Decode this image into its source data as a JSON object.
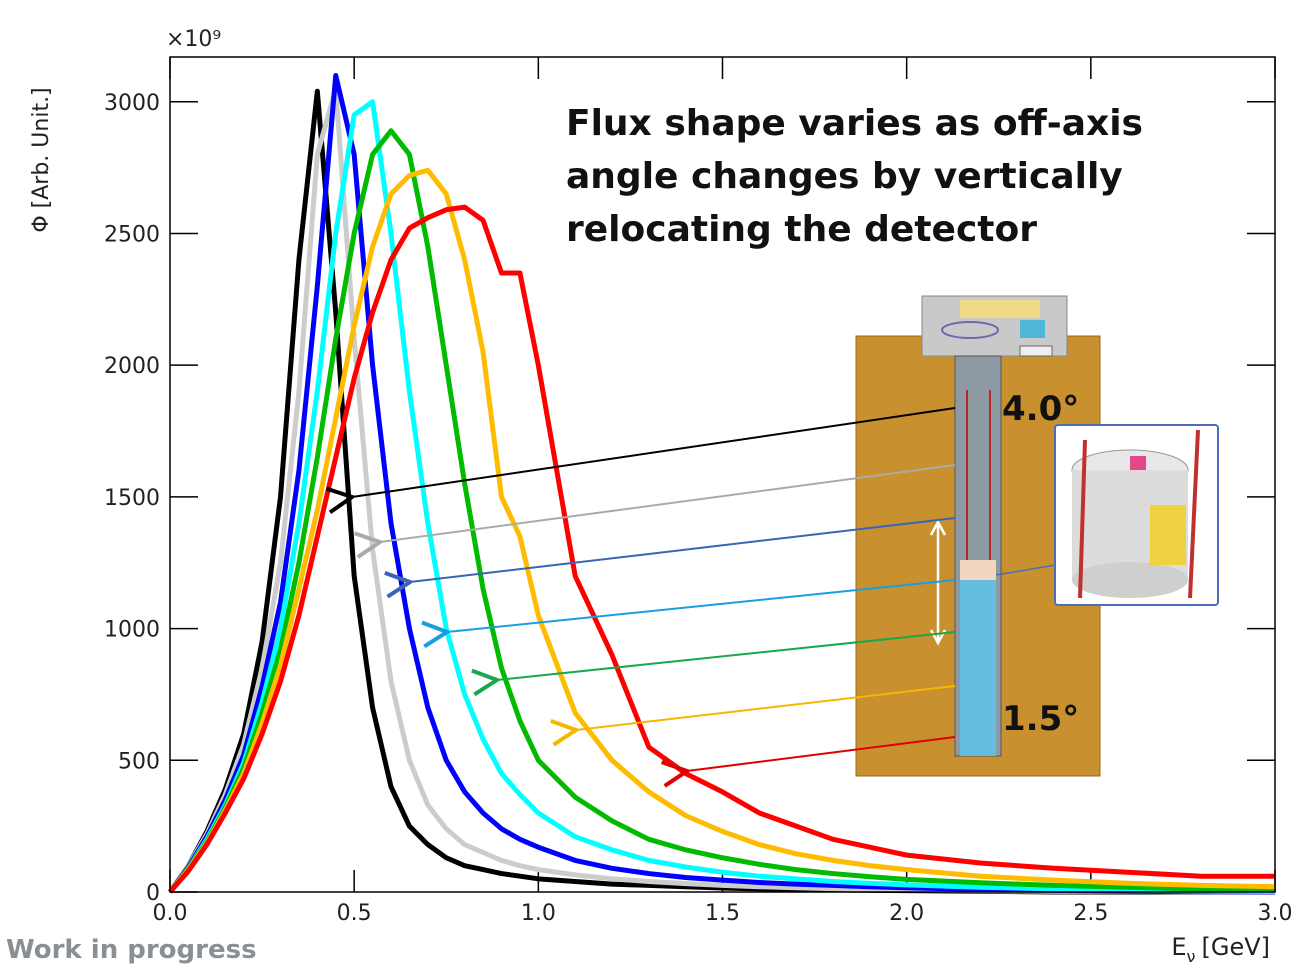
{
  "chart_data": {
    "type": "line",
    "multiplier": "×10⁹",
    "y_label": "Φ [Arb. Unit.]",
    "x_label": {
      "base": "E",
      "sub": "ν",
      "unit": "[GeV]"
    },
    "annotations": {
      "headline": [
        "Flux shape varies as off-axis",
        "angle changes by vertically",
        "relocating the detector"
      ],
      "angle_high": "4.0°",
      "angle_low": "1.5°",
      "status": "Work in progress"
    },
    "xlim": [
      0,
      3.0
    ],
    "ylim": [
      0,
      3170
    ],
    "xticks": [
      {
        "value": 0,
        "label": "0.0"
      },
      {
        "value": 0.5,
        "label": "0.5"
      },
      {
        "value": 1.0,
        "label": "1.0"
      },
      {
        "value": 1.5,
        "label": "1.5"
      },
      {
        "value": 2.0,
        "label": "2.0"
      },
      {
        "value": 2.5,
        "label": "2.5"
      },
      {
        "value": 3.0,
        "label": "3.0"
      }
    ],
    "yticks": [
      0,
      500,
      1000,
      1500,
      2000,
      2500,
      3000
    ],
    "x": [
      0,
      0.05,
      0.1,
      0.15,
      0.2,
      0.25,
      0.3,
      0.35,
      0.4,
      0.45,
      0.5,
      0.55,
      0.6,
      0.65,
      0.7,
      0.75,
      0.8,
      0.85,
      0.9,
      0.95,
      1.0,
      1.1,
      1.2,
      1.3,
      1.4,
      1.5,
      1.6,
      1.7,
      1.8,
      1.9,
      2.0,
      2.2,
      2.4,
      2.6,
      2.8,
      3.0
    ],
    "series": [
      {
        "color": "#000000",
        "values": [
          0,
          100,
          230,
          390,
          600,
          950,
          1500,
          2400,
          3040,
          2200,
          1200,
          700,
          400,
          250,
          180,
          130,
          100,
          85,
          70,
          60,
          50,
          40,
          30,
          25,
          20,
          15,
          12,
          10,
          8,
          6,
          5,
          3,
          0,
          0,
          0,
          0
        ]
      },
      {
        "color": "#cccccc",
        "values": [
          0,
          100,
          220,
          370,
          560,
          850,
          1250,
          1900,
          2800,
          3050,
          2100,
          1300,
          800,
          500,
          330,
          240,
          180,
          150,
          120,
          100,
          85,
          65,
          50,
          40,
          32,
          25,
          20,
          16,
          13,
          10,
          8,
          5,
          3,
          2,
          1,
          0
        ]
      },
      {
        "color": "#0000ff",
        "values": [
          0,
          95,
          210,
          350,
          520,
          780,
          1100,
          1600,
          2300,
          3100,
          2800,
          2000,
          1400,
          1000,
          700,
          500,
          380,
          300,
          240,
          200,
          170,
          120,
          90,
          70,
          55,
          45,
          36,
          30,
          25,
          20,
          16,
          10,
          6,
          3,
          1,
          0
        ]
      },
      {
        "color": "#00ffff",
        "values": [
          0,
          90,
          200,
          330,
          490,
          720,
          1000,
          1400,
          1900,
          2500,
          2950,
          3000,
          2500,
          1900,
          1400,
          1000,
          750,
          580,
          450,
          370,
          300,
          210,
          160,
          120,
          95,
          75,
          60,
          50,
          40,
          33,
          27,
          18,
          12,
          7,
          4,
          2
        ]
      },
      {
        "color": "#00bb00",
        "values": [
          0,
          90,
          190,
          320,
          470,
          680,
          920,
          1250,
          1650,
          2100,
          2500,
          2800,
          2890,
          2800,
          2450,
          2000,
          1550,
          1150,
          850,
          650,
          500,
          360,
          270,
          200,
          160,
          130,
          105,
          85,
          70,
          58,
          48,
          35,
          25,
          18,
          12,
          8
        ]
      },
      {
        "color": "#ffbb00",
        "values": [
          0,
          85,
          185,
          310,
          450,
          640,
          860,
          1150,
          1450,
          1800,
          2150,
          2450,
          2650,
          2720,
          2740,
          2650,
          2400,
          2050,
          1500,
          1350,
          1050,
          680,
          500,
          380,
          290,
          230,
          180,
          145,
          120,
          100,
          85,
          60,
          45,
          33,
          25,
          20
        ]
      },
      {
        "color": "#ff0000",
        "values": [
          0,
          80,
          180,
          300,
          430,
          600,
          800,
          1050,
          1350,
          1650,
          1950,
          2200,
          2400,
          2520,
          2560,
          2590,
          2600,
          2550,
          2350,
          2350,
          2000,
          1200,
          900,
          550,
          450,
          380,
          300,
          250,
          200,
          170,
          140,
          110,
          90,
          75,
          60,
          60
        ]
      }
    ]
  }
}
